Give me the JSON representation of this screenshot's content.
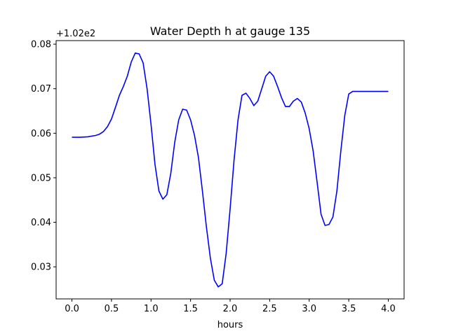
{
  "chart_data": {
    "type": "line",
    "title": "Water Depth h at gauge 135",
    "xlabel": "hours",
    "ylabel": "",
    "offset_label": "+1.02e2",
    "xlim": [
      -0.2,
      4.2
    ],
    "ylim": [
      0.0228,
      0.0808
    ],
    "xticks": [
      0.0,
      0.5,
      1.0,
      1.5,
      2.0,
      2.5,
      3.0,
      3.5,
      4.0
    ],
    "xtick_labels": [
      "0.0",
      "0.5",
      "1.0",
      "1.5",
      "2.0",
      "2.5",
      "3.0",
      "3.5",
      "4.0"
    ],
    "yticks": [
      0.03,
      0.04,
      0.05,
      0.06,
      0.07,
      0.08
    ],
    "ytick_labels": [
      "0.03",
      "0.04",
      "0.05",
      "0.06",
      "0.07",
      "0.08"
    ],
    "grid": false,
    "legend": "none",
    "series": [
      {
        "color": "#0000ff",
        "x": [
          0.0,
          0.1,
          0.2,
          0.3,
          0.35,
          0.4,
          0.45,
          0.5,
          0.55,
          0.6,
          0.65,
          0.7,
          0.75,
          0.8,
          0.85,
          0.9,
          0.95,
          1.0,
          1.05,
          1.1,
          1.15,
          1.2,
          1.25,
          1.3,
          1.35,
          1.4,
          1.45,
          1.5,
          1.55,
          1.6,
          1.65,
          1.7,
          1.75,
          1.8,
          1.85,
          1.9,
          1.95,
          2.0,
          2.05,
          2.1,
          2.15,
          2.2,
          2.25,
          2.3,
          2.35,
          2.4,
          2.45,
          2.5,
          2.55,
          2.6,
          2.65,
          2.7,
          2.75,
          2.8,
          2.85,
          2.9,
          2.95,
          3.0,
          3.05,
          3.1,
          3.15,
          3.2,
          3.25,
          3.3,
          3.35,
          3.4,
          3.45,
          3.5,
          3.55,
          3.6,
          3.65,
          3.7,
          3.75,
          3.8,
          3.85,
          3.9,
          3.95,
          4.0
        ],
        "y": [
          0.0591,
          0.0591,
          0.0592,
          0.0595,
          0.0598,
          0.0604,
          0.0615,
          0.0632,
          0.0658,
          0.0685,
          0.0705,
          0.0728,
          0.076,
          0.078,
          0.0778,
          0.0758,
          0.07,
          0.062,
          0.053,
          0.047,
          0.0452,
          0.0462,
          0.051,
          0.058,
          0.063,
          0.0654,
          0.0652,
          0.063,
          0.0595,
          0.0545,
          0.047,
          0.039,
          0.032,
          0.027,
          0.0255,
          0.0262,
          0.033,
          0.043,
          0.054,
          0.063,
          0.0685,
          0.069,
          0.0678,
          0.0662,
          0.0672,
          0.07,
          0.0728,
          0.0738,
          0.0728,
          0.0705,
          0.068,
          0.066,
          0.066,
          0.0672,
          0.0678,
          0.067,
          0.0645,
          0.061,
          0.056,
          0.049,
          0.0418,
          0.0393,
          0.0395,
          0.0412,
          0.047,
          0.056,
          0.064,
          0.0688,
          0.0694,
          0.0694,
          0.0694,
          0.0694,
          0.0694,
          0.0694,
          0.0694,
          0.0694,
          0.0694,
          0.0694
        ]
      }
    ]
  }
}
